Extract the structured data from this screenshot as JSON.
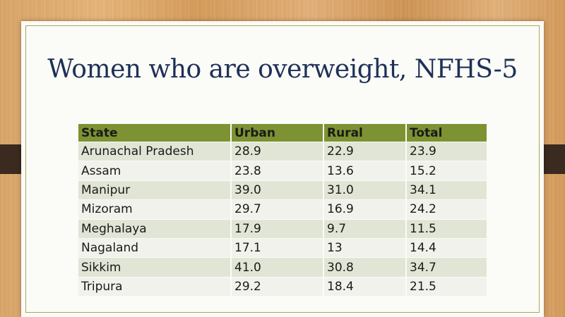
{
  "slide": {
    "title": "Women who are overweight, NFHS-5"
  },
  "chart_data": {
    "type": "table",
    "title": "Women who are overweight, NFHS-5",
    "columns": [
      "State",
      "Urban",
      "Rural",
      "Total"
    ],
    "rows": [
      [
        "Arunachal Pradesh",
        "28.9",
        "22.9",
        "23.9"
      ],
      [
        "Assam",
        "23.8",
        "13.6",
        "15.2"
      ],
      [
        "Manipur",
        "39.0",
        "31.0",
        "34.1"
      ],
      [
        "Mizoram",
        "29.7",
        "16.9",
        "24.2"
      ],
      [
        "Meghalaya",
        "17.9",
        "9.7",
        "11.5"
      ],
      [
        "Nagaland",
        "17.1",
        "13",
        "14.4"
      ],
      [
        "Sikkim",
        "41.0",
        "30.8",
        "34.7"
      ],
      [
        "Tripura",
        "29.2",
        "18.4",
        "21.5"
      ]
    ]
  },
  "colors": {
    "header_bg": "#7d9232",
    "row_band_dark": "#e1e5d5",
    "row_band_light": "#f1f2ec",
    "title_color": "#1f3058"
  }
}
